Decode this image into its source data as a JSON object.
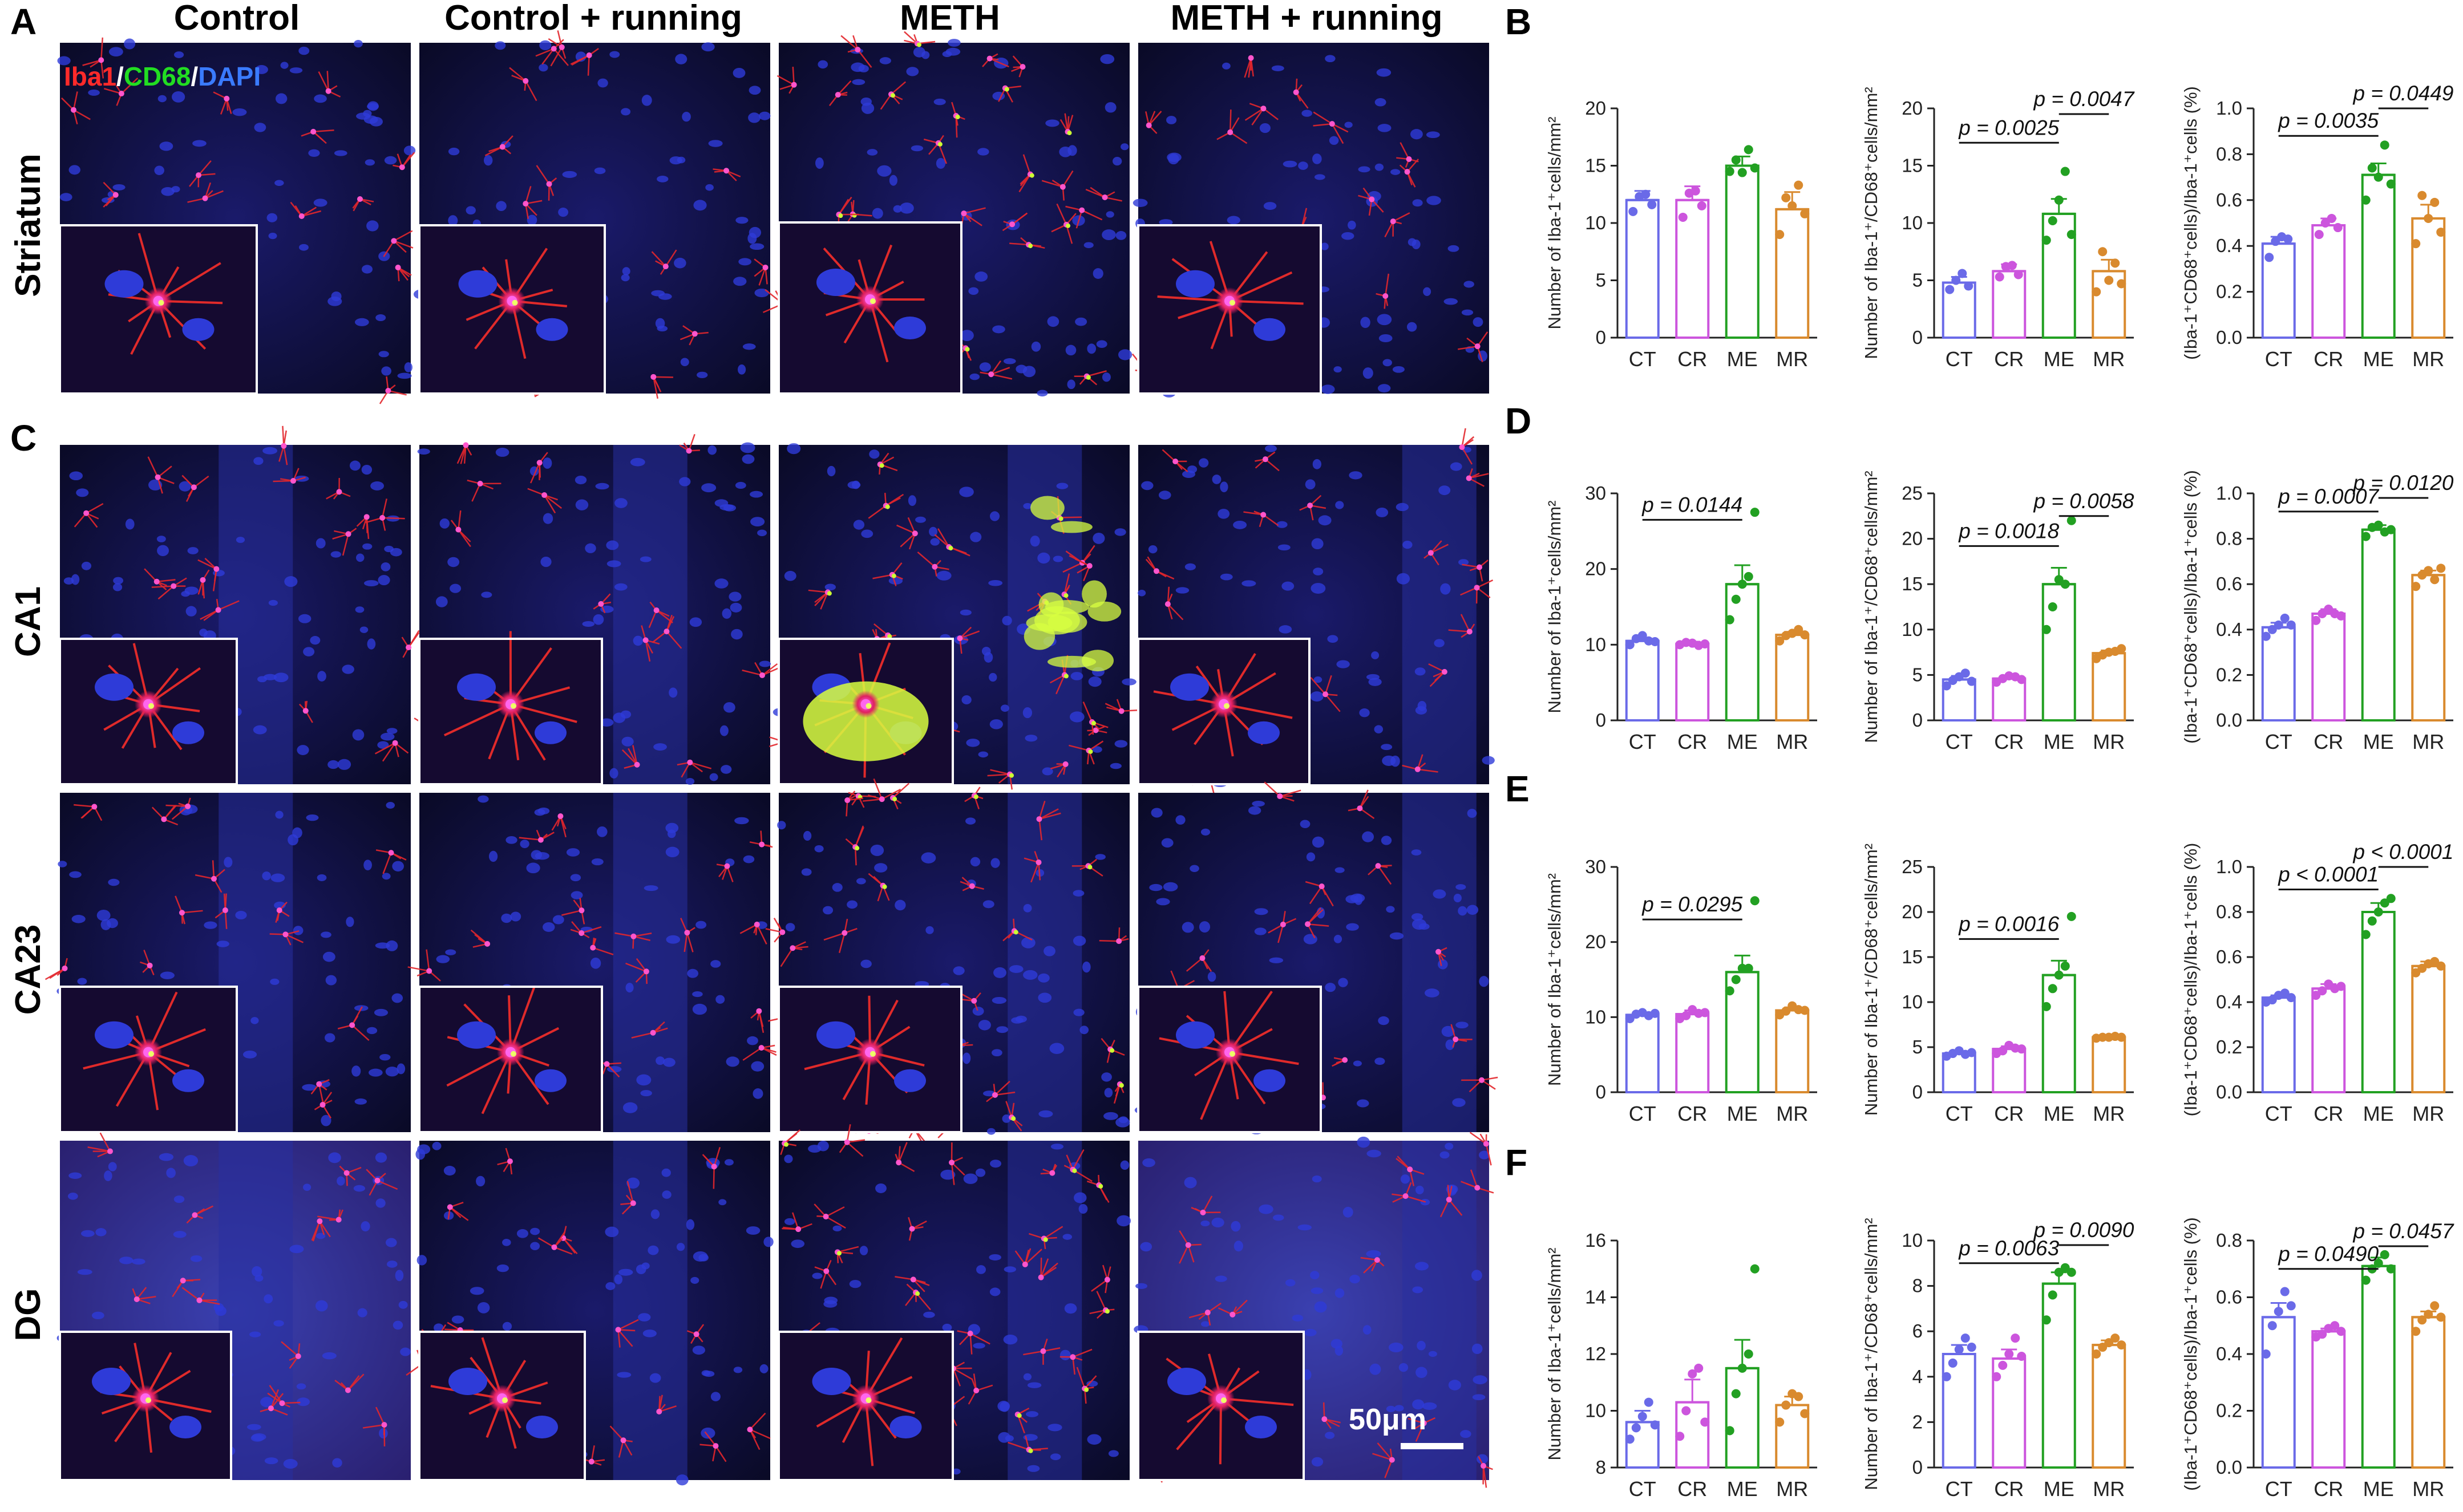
{
  "panel_labels": [
    "A",
    "B",
    "C",
    "D",
    "E",
    "F"
  ],
  "column_headers": [
    "Control",
    "Control + running",
    "METH",
    "METH + running"
  ],
  "row_labels": [
    "Striatum",
    "CA1",
    "CA23",
    "DG"
  ],
  "stain_legend": [
    {
      "text": "Iba1",
      "color": "#ff2a2a"
    },
    {
      "text": "/",
      "color": "#ffffff"
    },
    {
      "text": "CD68",
      "color": "#22dd22"
    },
    {
      "text": "/",
      "color": "#ffffff"
    },
    {
      "text": "DAPI",
      "color": "#3a7bff"
    }
  ],
  "scale_bar": "50μm",
  "colors": {
    "CT": "#6a6ae8",
    "CR": "#cc55dd",
    "ME": "#22a022",
    "MR": "#d98a2e"
  },
  "chart_data": [
    {
      "type": "bar",
      "panel": "B",
      "categories": [
        "CT",
        "CR",
        "ME",
        "MR"
      ],
      "ylabel": "Number of Iba-1⁺cells/mm²",
      "ylim": [
        0,
        20
      ],
      "yticks": [
        "0",
        "5",
        "10",
        "15",
        "20"
      ],
      "values": [
        12.0,
        12.0,
        15.0,
        11.2
      ],
      "errors": [
        0.8,
        1.2,
        0.8,
        1.5
      ],
      "points": [
        [
          11.0,
          12.3,
          12.5,
          11.6
        ],
        [
          10.5,
          12.6,
          12.8,
          11.5
        ],
        [
          14.5,
          15.5,
          14.4,
          16.4,
          14.8
        ],
        [
          9.0,
          12.2,
          11.5,
          13.3,
          10.8
        ]
      ],
      "pvalues": []
    },
    {
      "type": "bar",
      "panel": "B",
      "categories": [
        "CT",
        "CR",
        "ME",
        "MR"
      ],
      "ylabel": "Number of Iba-1⁺/CD68⁺cells/mm²",
      "ylim": [
        0,
        20
      ],
      "yticks": [
        "0",
        "5",
        "10",
        "15",
        "20"
      ],
      "values": [
        4.8,
        5.8,
        10.8,
        5.8
      ],
      "errors": [
        0.5,
        0.6,
        1.3,
        1.0
      ],
      "points": [
        [
          4.2,
          5.0,
          5.6,
          4.5
        ],
        [
          5.3,
          6.2,
          6.3,
          5.5
        ],
        [
          8.5,
          10.2,
          12.0,
          14.5,
          9.0
        ],
        [
          4.0,
          7.5,
          5.0,
          6.5,
          4.7
        ]
      ],
      "pvalues": [
        {
          "from": 0,
          "to": 2,
          "text": "p = 0.0025",
          "y": 17.0
        },
        {
          "from": 2,
          "to": 3,
          "text": "p = 0.0047",
          "y": 19.5
        }
      ]
    },
    {
      "type": "bar",
      "panel": "B",
      "categories": [
        "CT",
        "CR",
        "ME",
        "MR"
      ],
      "ylabel": "(Iba-1⁺CD68⁺cells)/Iba-1⁺cells (%)",
      "ylim": [
        0,
        1.0
      ],
      "yticks": [
        "0.0",
        "0.2",
        "0.4",
        "0.6",
        "0.8",
        "1.0"
      ],
      "values": [
        0.41,
        0.49,
        0.71,
        0.52
      ],
      "errors": [
        0.03,
        0.03,
        0.05,
        0.06
      ],
      "points": [
        [
          0.35,
          0.42,
          0.44,
          0.43
        ],
        [
          0.45,
          0.5,
          0.52,
          0.48
        ],
        [
          0.6,
          0.74,
          0.7,
          0.84,
          0.67
        ],
        [
          0.41,
          0.62,
          0.52,
          0.59,
          0.46
        ]
      ],
      "pvalues": [
        {
          "from": 0,
          "to": 2,
          "text": "p = 0.0035",
          "y": 0.88
        },
        {
          "from": 2,
          "to": 3,
          "text": "p = 0.0449",
          "y": 1.0
        }
      ]
    },
    {
      "type": "bar",
      "panel": "D",
      "categories": [
        "CT",
        "CR",
        "ME",
        "MR"
      ],
      "ylabel": "Number of Iba-1⁺cells/mm²",
      "ylim": [
        0,
        30
      ],
      "yticks": [
        "0",
        "10",
        "20",
        "30"
      ],
      "values": [
        10.5,
        10.1,
        18.0,
        11.3
      ],
      "errors": [
        0.4,
        0.3,
        2.5,
        0.4
      ],
      "points": [
        [
          10.0,
          10.8,
          11.2,
          10.5,
          10.4
        ],
        [
          10.0,
          10.3,
          10.2,
          9.9,
          10.1
        ],
        [
          13.3,
          16.0,
          18.0,
          19.0,
          27.5
        ],
        [
          10.5,
          11.2,
          11.5,
          12.0,
          11.3
        ]
      ],
      "pvalues": [
        {
          "from": 0,
          "to": 2,
          "text": "p = 0.0144",
          "y": 26.5
        }
      ]
    },
    {
      "type": "bar",
      "panel": "D",
      "categories": [
        "CT",
        "CR",
        "ME",
        "MR"
      ],
      "ylabel": "Number of Iba-1⁺/CD68⁺cells/mm²",
      "ylim": [
        0,
        25
      ],
      "yticks": [
        "0",
        "5",
        "10",
        "15",
        "20",
        "25"
      ],
      "values": [
        4.5,
        4.6,
        15.0,
        7.4
      ],
      "errors": [
        0.4,
        0.3,
        1.8,
        0.3
      ],
      "points": [
        [
          3.8,
          4.4,
          4.8,
          5.2,
          4.3
        ],
        [
          4.2,
          4.6,
          4.9,
          4.8,
          4.5
        ],
        [
          10.0,
          12.5,
          15.5,
          15.0,
          22.0
        ],
        [
          6.8,
          7.2,
          7.5,
          7.6,
          7.9
        ]
      ],
      "pvalues": [
        {
          "from": 0,
          "to": 2,
          "text": "p = 0.0018",
          "y": 19.2
        },
        {
          "from": 2,
          "to": 3,
          "text": "p = 0.0058",
          "y": 22.5
        }
      ]
    },
    {
      "type": "bar",
      "panel": "D",
      "categories": [
        "CT",
        "CR",
        "ME",
        "MR"
      ],
      "ylabel": "(Iba-1⁺CD68⁺cells)/Iba-1⁺cells (%)",
      "ylim": [
        0,
        1.0
      ],
      "yticks": [
        "0.0",
        "0.2",
        "0.4",
        "0.6",
        "0.8",
        "1.0"
      ],
      "values": [
        0.41,
        0.47,
        0.84,
        0.64
      ],
      "errors": [
        0.02,
        0.02,
        0.02,
        0.02
      ],
      "points": [
        [
          0.37,
          0.4,
          0.42,
          0.45,
          0.42
        ],
        [
          0.44,
          0.47,
          0.49,
          0.47,
          0.46
        ],
        [
          0.81,
          0.85,
          0.86,
          0.83,
          0.84
        ],
        [
          0.59,
          0.64,
          0.66,
          0.62,
          0.67
        ]
      ],
      "pvalues": [
        {
          "from": 0,
          "to": 2,
          "text": "p = 0.0007",
          "y": 0.92
        },
        {
          "from": 2,
          "to": 3,
          "text": "p = 0.0120",
          "y": 0.98
        }
      ]
    },
    {
      "type": "bar",
      "panel": "E",
      "categories": [
        "CT",
        "CR",
        "ME",
        "MR"
      ],
      "ylabel": "Number of Iba-1⁺cells/mm²",
      "ylim": [
        0,
        30
      ],
      "yticks": [
        "0",
        "10",
        "20",
        "30"
      ],
      "values": [
        10.3,
        10.4,
        16.0,
        10.9
      ],
      "errors": [
        0.3,
        0.5,
        2.2,
        0.4
      ],
      "points": [
        [
          9.8,
          10.4,
          10.6,
          10.2,
          10.5
        ],
        [
          9.8,
          10.2,
          11.0,
          10.5,
          10.6
        ],
        [
          13.5,
          15.0,
          16.5,
          16.5,
          25.5
        ],
        [
          10.3,
          10.8,
          11.5,
          11.0,
          10.9
        ]
      ],
      "pvalues": [
        {
          "from": 0,
          "to": 2,
          "text": "p = 0.0295",
          "y": 23.0
        }
      ]
    },
    {
      "type": "bar",
      "panel": "E",
      "categories": [
        "CT",
        "CR",
        "ME",
        "MR"
      ],
      "ylabel": "Number of Iba-1⁺/CD68⁺cells/mm²",
      "ylim": [
        0,
        25
      ],
      "yticks": [
        "0",
        "5",
        "10",
        "15",
        "20",
        "25"
      ],
      "values": [
        4.3,
        4.8,
        13.0,
        6.1
      ],
      "errors": [
        0.2,
        0.3,
        1.6,
        0.1
      ],
      "points": [
        [
          4.0,
          4.3,
          4.6,
          4.2,
          4.4
        ],
        [
          4.3,
          4.6,
          5.2,
          4.9,
          4.8
        ],
        [
          9.5,
          11.5,
          13.0,
          14.0,
          19.5
        ],
        [
          6.0,
          6.1,
          6.1,
          6.2,
          6.1
        ]
      ],
      "pvalues": [
        {
          "from": 0,
          "to": 2,
          "text": "p = 0.0016",
          "y": 17.0
        }
      ]
    },
    {
      "type": "bar",
      "panel": "E",
      "categories": [
        "CT",
        "CR",
        "ME",
        "MR"
      ],
      "ylabel": "(Iba-1⁺CD68⁺cells)/Iba-1⁺cells (%)",
      "ylim": [
        0,
        1.0
      ],
      "yticks": [
        "0.0",
        "0.2",
        "0.4",
        "0.6",
        "0.8",
        "1.0"
      ],
      "values": [
        0.42,
        0.46,
        0.8,
        0.56
      ],
      "errors": [
        0.01,
        0.02,
        0.04,
        0.02
      ],
      "points": [
        [
          0.4,
          0.41,
          0.43,
          0.44,
          0.42
        ],
        [
          0.43,
          0.45,
          0.48,
          0.46,
          0.47
        ],
        [
          0.7,
          0.76,
          0.8,
          0.84,
          0.86
        ],
        [
          0.53,
          0.55,
          0.57,
          0.58,
          0.56
        ]
      ],
      "pvalues": [
        {
          "from": 0,
          "to": 2,
          "text": "p < 0.0001",
          "y": 0.9
        },
        {
          "from": 2,
          "to": 3,
          "text": "p < 0.0001",
          "y": 1.0
        }
      ]
    },
    {
      "type": "bar",
      "panel": "F",
      "categories": [
        "CT",
        "CR",
        "ME",
        "MR"
      ],
      "ylabel": "Number of Iba-1⁺cells/mm²",
      "ylim": [
        8,
        16
      ],
      "yticks": [
        "8",
        "10",
        "12",
        "14",
        "16"
      ],
      "values": [
        9.6,
        10.3,
        11.5,
        10.2
      ],
      "errors": [
        0.4,
        0.8,
        1.0,
        0.3
      ],
      "points": [
        [
          9.0,
          9.4,
          9.8,
          10.3,
          9.5
        ],
        [
          9.1,
          10.0,
          11.3,
          11.5,
          9.6
        ],
        [
          9.3,
          10.6,
          11.5,
          12.0,
          15.0
        ],
        [
          9.6,
          10.2,
          10.6,
          10.5,
          9.9
        ]
      ],
      "pvalues": []
    },
    {
      "type": "bar",
      "panel": "F",
      "categories": [
        "CT",
        "CR",
        "ME",
        "MR"
      ],
      "ylabel": "Number of Iba-1⁺/CD68⁺cells/mm²",
      "ylim": [
        0,
        10
      ],
      "yticks": [
        "0",
        "2",
        "4",
        "6",
        "8",
        "10"
      ],
      "values": [
        5.0,
        4.8,
        8.1,
        5.4
      ],
      "errors": [
        0.4,
        0.4,
        0.5,
        0.2
      ],
      "points": [
        [
          4.0,
          4.6,
          5.2,
          5.7,
          5.3
        ],
        [
          4.0,
          4.5,
          5.0,
          5.7,
          4.9
        ],
        [
          6.5,
          7.6,
          8.6,
          8.8,
          8.6
        ],
        [
          5.0,
          5.3,
          5.5,
          5.7,
          5.4
        ]
      ],
      "pvalues": [
        {
          "from": 0,
          "to": 2,
          "text": "p = 0.0063",
          "y": 9.0
        },
        {
          "from": 2,
          "to": 3,
          "text": "p = 0.0090",
          "y": 9.8
        }
      ]
    },
    {
      "type": "bar",
      "panel": "F",
      "categories": [
        "CT",
        "CR",
        "ME",
        "MR"
      ],
      "ylabel": "(Iba-1⁺CD68⁺cells)/Iba-1⁺cells (%)",
      "ylim": [
        0,
        0.8
      ],
      "yticks": [
        "0.0",
        "0.2",
        "0.4",
        "0.6",
        "0.8"
      ],
      "values": [
        0.53,
        0.48,
        0.71,
        0.53
      ],
      "errors": [
        0.05,
        0.01,
        0.03,
        0.02
      ],
      "points": [
        [
          0.4,
          0.5,
          0.55,
          0.62,
          0.57
        ],
        [
          0.46,
          0.47,
          0.49,
          0.5,
          0.48
        ],
        [
          0.66,
          0.7,
          0.72,
          0.75,
          0.7
        ],
        [
          0.48,
          0.52,
          0.54,
          0.57,
          0.53
        ]
      ],
      "pvalues": [
        {
          "from": 0,
          "to": 2,
          "text": "p = 0.0490",
          "y": 0.7
        },
        {
          "from": 2,
          "to": 3,
          "text": "p = 0.0457",
          "y": 0.78
        }
      ]
    }
  ]
}
